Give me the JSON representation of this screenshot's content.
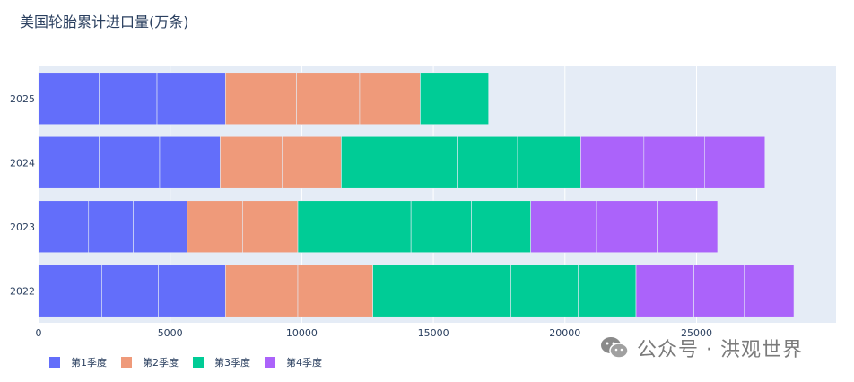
{
  "chart_data": {
    "type": "bar",
    "orientation": "horizontal",
    "barmode": "stack",
    "title": "美国轮胎累计进口量(万条)",
    "categories": [
      "2022",
      "2023",
      "2024",
      "2025"
    ],
    "xlim": [
      0,
      30300
    ],
    "xticks": [
      0,
      5000,
      10000,
      15000,
      20000,
      25000
    ],
    "grid": true,
    "legend_position": "bottom-left",
    "series": [
      {
        "name": "第1季度",
        "color": "#636efa",
        "segments": [
          [
            2400,
            2150,
            2550
          ],
          [
            1900,
            1700,
            2050
          ],
          [
            2300,
            2300,
            2300
          ],
          [
            2300,
            2200,
            2600
          ]
        ]
      },
      {
        "name": "第2季度",
        "color": "#ef9a7a",
        "segments": [
          [
            2750,
            2850
          ],
          [
            2100,
            2100
          ],
          [
            2350,
            2250
          ],
          [
            2700,
            2400,
            2300
          ]
        ]
      },
      {
        "name": "第3季度",
        "color": "#00cc96",
        "segments": [
          [
            5250,
            2550,
            2200
          ],
          [
            4300,
            2300,
            2250
          ],
          [
            4400,
            2300,
            2400
          ],
          [
            2600
          ]
        ]
      },
      {
        "name": "第4季度",
        "color": "#ab63fa",
        "segments": [
          [
            2200,
            1900,
            1900
          ],
          [
            2500,
            2300,
            2300
          ],
          [
            2400,
            2300,
            2300
          ],
          []
        ]
      }
    ]
  },
  "watermark": {
    "text": "公众号 · 洪观世界",
    "icon": "wechat-icon"
  }
}
